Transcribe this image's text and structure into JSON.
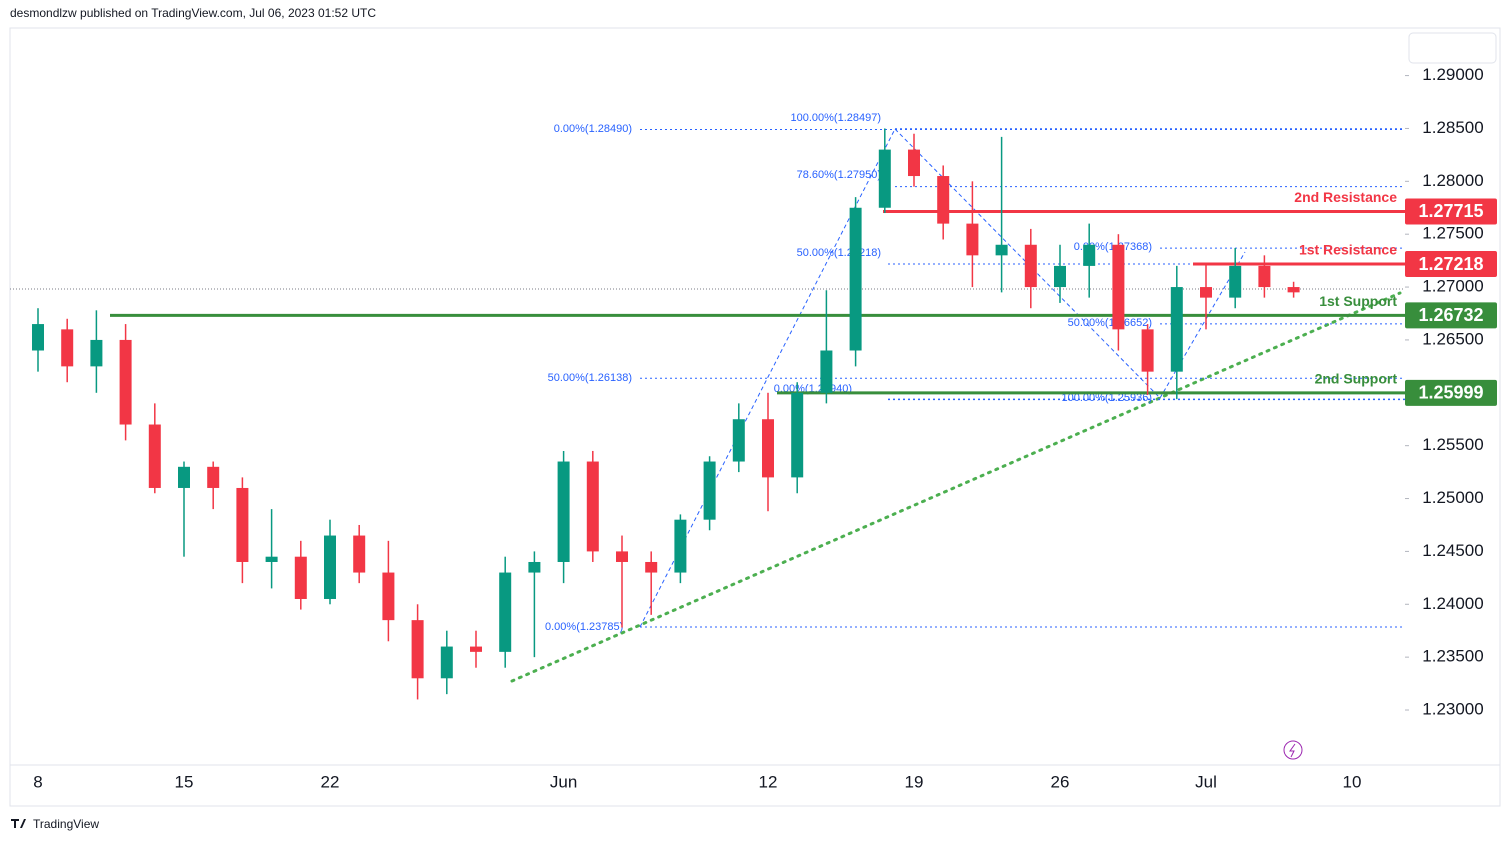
{
  "header": "desmondlzw published on TradingView.com, Jul 06, 2023 01:52 UTC",
  "footer": "TradingView",
  "chart_data": {
    "type": "candlestick",
    "categories": [
      "8",
      null,
      null,
      null,
      null,
      "15",
      null,
      null,
      null,
      null,
      "22",
      null,
      null,
      null,
      null,
      null,
      null,
      null,
      "Jun",
      null,
      null,
      null,
      null,
      null,
      null,
      "12",
      null,
      null,
      null,
      null,
      "19",
      null,
      null,
      null,
      null,
      "26",
      null,
      null,
      null,
      null,
      "Jul",
      null,
      null,
      null,
      null,
      "10"
    ],
    "open": [
      1.264,
      1.266,
      1.2625,
      1.265,
      1.257,
      1.251,
      1.253,
      1.251,
      1.244,
      1.2445,
      1.2405,
      1.2465,
      1.243,
      1.2385,
      1.233,
      1.236,
      1.2355,
      1.243,
      1.244,
      1.2535,
      1.245,
      1.244,
      1.243,
      1.248,
      1.2535,
      1.2575,
      1.252,
      1.26,
      1.264,
      1.2775,
      1.283,
      1.2805,
      1.276,
      1.273,
      1.274,
      1.27,
      1.272,
      1.274,
      1.266,
      1.262,
      1.27,
      1.269,
      1.272,
      1.27,
      null,
      null
    ],
    "high": [
      1.268,
      1.267,
      1.2678,
      1.2665,
      1.259,
      1.2535,
      1.2535,
      1.252,
      1.249,
      1.246,
      1.248,
      1.2475,
      1.246,
      1.24,
      1.2375,
      1.2375,
      1.2445,
      1.245,
      1.2545,
      1.2545,
      1.2465,
      1.245,
      1.2485,
      1.254,
      1.259,
      1.26,
      1.261,
      1.2697,
      1.2785,
      1.285,
      1.2845,
      1.2815,
      1.28,
      1.2842,
      1.2755,
      1.274,
      1.276,
      1.275,
      1.2665,
      1.272,
      1.2722,
      1.2737,
      1.273,
      1.2705,
      null,
      null
    ],
    "low": [
      1.262,
      1.261,
      1.26,
      1.2555,
      1.2505,
      1.2445,
      1.249,
      1.242,
      1.2415,
      1.2395,
      1.24,
      1.242,
      1.2365,
      1.231,
      1.2315,
      1.234,
      1.234,
      1.235,
      1.242,
      1.244,
      1.2378,
      1.239,
      1.242,
      1.247,
      1.2525,
      1.2488,
      1.2505,
      1.259,
      1.2625,
      1.277,
      1.2795,
      1.2745,
      1.27,
      1.2695,
      1.268,
      1.2685,
      1.269,
      1.264,
      1.2598,
      1.2594,
      1.266,
      1.268,
      1.269,
      1.269,
      null,
      null
    ],
    "close": [
      1.2665,
      1.2625,
      1.265,
      1.257,
      1.251,
      1.253,
      1.251,
      1.244,
      1.2445,
      1.2405,
      1.2465,
      1.243,
      1.2385,
      1.233,
      1.236,
      1.2355,
      1.243,
      1.244,
      1.2535,
      1.245,
      1.244,
      1.243,
      1.248,
      1.2535,
      1.2575,
      1.252,
      1.26,
      1.264,
      1.2775,
      1.283,
      1.2805,
      1.276,
      1.273,
      1.274,
      1.27,
      1.272,
      1.274,
      1.266,
      1.262,
      1.27,
      1.269,
      1.272,
      1.27,
      1.2695,
      null,
      null
    ],
    "up_color": "#089981",
    "down_color": "#f23645",
    "ylim": [
      1.2248,
      1.2945
    ],
    "yticks": [
      {
        "value": 1.23,
        "label": "1.23000"
      },
      {
        "value": 1.235,
        "label": "1.23500"
      },
      {
        "value": 1.24,
        "label": "1.24000"
      },
      {
        "value": 1.245,
        "label": "1.24500"
      },
      {
        "value": 1.25,
        "label": "1.25000"
      },
      {
        "value": 1.255,
        "label": "1.25500"
      },
      {
        "value": 1.26,
        "label": "1.26000"
      },
      {
        "value": 1.265,
        "label": "1.26500"
      },
      {
        "value": 1.27,
        "label": "1.27000"
      },
      {
        "value": 1.275,
        "label": "1.27500"
      },
      {
        "value": 1.28,
        "label": "1.28000"
      },
      {
        "value": 1.285,
        "label": "1.28500"
      },
      {
        "value": 1.29,
        "label": "1.29000"
      }
    ],
    "levels": [
      {
        "name": "2nd Resistance",
        "value": 1.27715,
        "label": "1.27715",
        "color": "#f23645"
      },
      {
        "name": "1st Resistance",
        "value": 1.27218,
        "label": "1.27218",
        "color": "#f23645"
      },
      {
        "name": "1st Support",
        "value": 1.26732,
        "label": "1.26732",
        "color": "#388e3c"
      },
      {
        "name": "2nd Support",
        "value": 1.25999,
        "label": "1.25999",
        "color": "#388e3c"
      }
    ],
    "fib_levels": [
      {
        "label": "0.00%(1.28490)",
        "value": 1.2849
      },
      {
        "label": "100.00%(1.28497)",
        "value": 1.28497
      },
      {
        "label": "78.60%(1.27950)",
        "value": 1.2795
      },
      {
        "label": "50.00%(1.27218)",
        "value": 1.27218
      },
      {
        "label": "50.00%(1.26138)",
        "value": 1.26138
      },
      {
        "label": "0.00%(1.25940)",
        "value": 1.2594
      },
      {
        "label": "100.00%(1.25936)",
        "value": 1.25936
      },
      {
        "label": "0.00%(1.23785)",
        "value": 1.23785
      },
      {
        "label": "0.00%(1.27368)",
        "value": 1.27368
      },
      {
        "label": "50.00%(1.26652)",
        "value": 1.26652
      }
    ],
    "fib_color": "#2962ff"
  }
}
